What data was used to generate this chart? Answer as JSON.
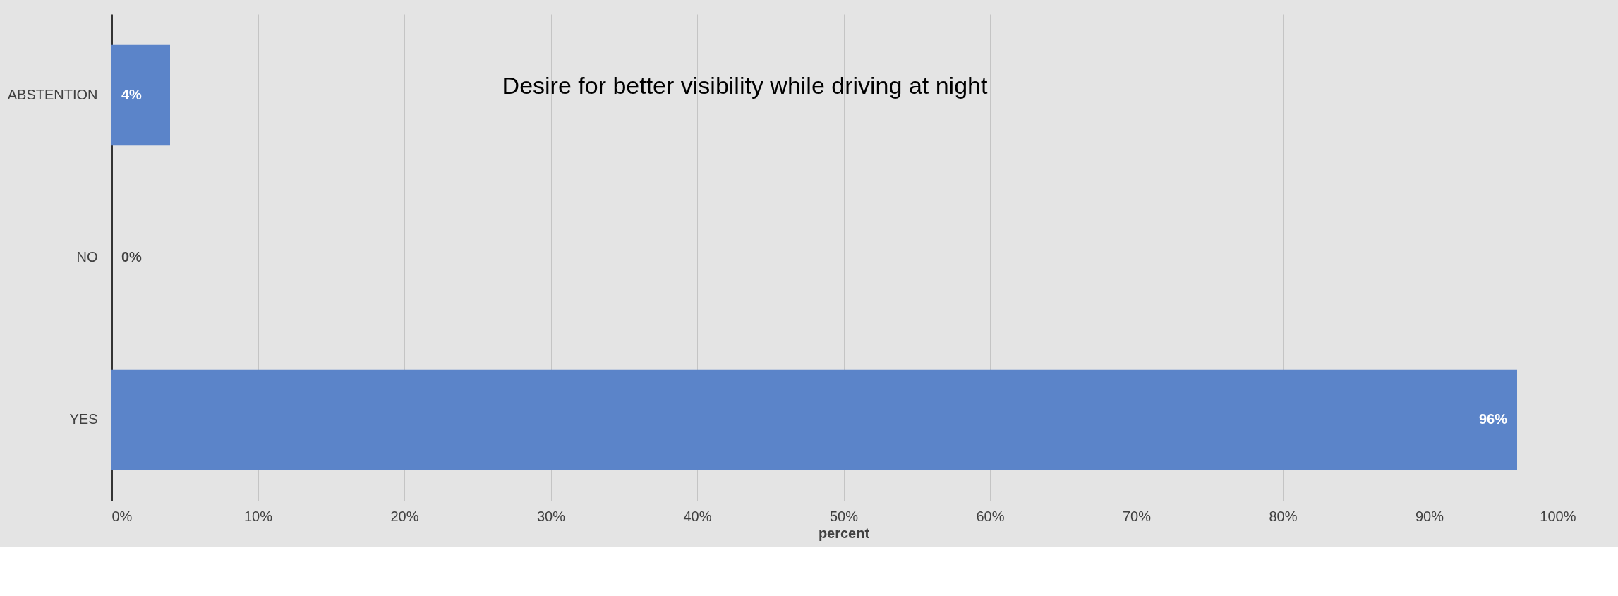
{
  "chart_data": {
    "type": "bar",
    "orientation": "horizontal",
    "title": "Desire for better visibility while driving at night",
    "xlabel": "percent",
    "categories": [
      "ABSTENTION",
      "NO",
      "YES"
    ],
    "values": [
      4,
      0,
      96
    ],
    "value_labels": [
      "4%",
      "0%",
      "96%"
    ],
    "color": "#5b84c9",
    "xlim": [
      0,
      100
    ],
    "xticks": [
      {
        "value": 0,
        "label": "0%"
      },
      {
        "value": 10,
        "label": "10%"
      },
      {
        "value": 20,
        "label": "20%"
      },
      {
        "value": 30,
        "label": "30%"
      },
      {
        "value": 40,
        "label": "40%"
      },
      {
        "value": 50,
        "label": "50%"
      },
      {
        "value": 60,
        "label": "60%"
      },
      {
        "value": 70,
        "label": "70%"
      },
      {
        "value": 80,
        "label": "80%"
      },
      {
        "value": 90,
        "label": "90%"
      },
      {
        "value": 100,
        "label": "100%"
      }
    ],
    "grid": "x"
  }
}
